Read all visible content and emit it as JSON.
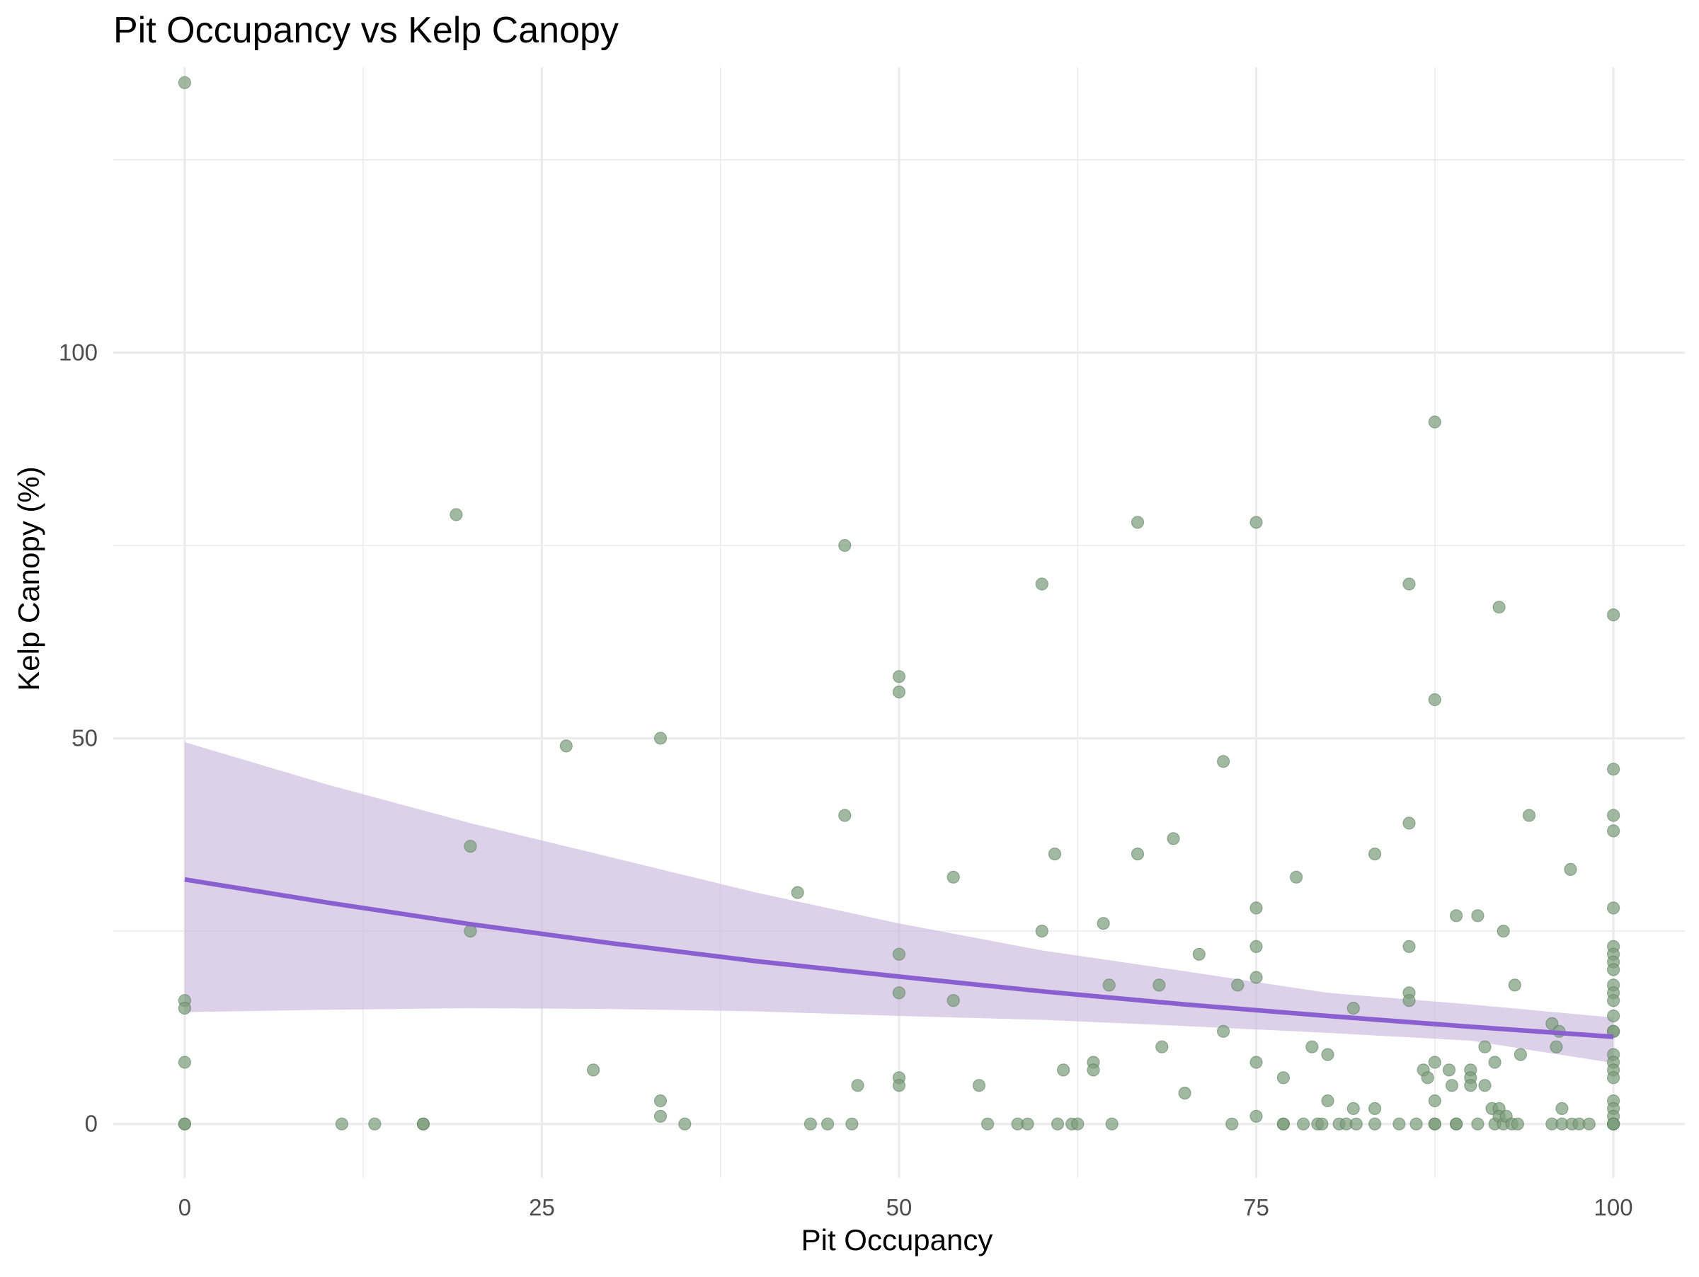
{
  "chart_data": {
    "type": "scatter",
    "title": "Pit Occupancy vs Kelp Canopy",
    "xlabel": "Pit Occupancy",
    "ylabel": "Kelp Canopy (%)",
    "xlim": [
      -5,
      105
    ],
    "ylim": [
      -7,
      137
    ],
    "x_ticks": [
      0,
      25,
      50,
      75,
      100
    ],
    "y_ticks": [
      0,
      50,
      100
    ],
    "grid": true,
    "legend": "none",
    "colors": {
      "points": "#7d9e7b",
      "trend_line": "#8a5fd0",
      "ribbon": "#c9b8db"
    },
    "points": [
      [
        0,
        135
      ],
      [
        0,
        16
      ],
      [
        0,
        15
      ],
      [
        0,
        8
      ],
      [
        0,
        0
      ],
      [
        0,
        0
      ],
      [
        11,
        0
      ],
      [
        13.3,
        0
      ],
      [
        16.7,
        0
      ],
      [
        16.7,
        0
      ],
      [
        19,
        79
      ],
      [
        20,
        36
      ],
      [
        20,
        25
      ],
      [
        26.7,
        49
      ],
      [
        28.6,
        7
      ],
      [
        33.3,
        50
      ],
      [
        33.3,
        3
      ],
      [
        33.3,
        1
      ],
      [
        35,
        0
      ],
      [
        42.9,
        30
      ],
      [
        43.8,
        0
      ],
      [
        45,
        0
      ],
      [
        46.2,
        75
      ],
      [
        46.2,
        40
      ],
      [
        46.7,
        0
      ],
      [
        47.1,
        5
      ],
      [
        50,
        58
      ],
      [
        50,
        56
      ],
      [
        50,
        22
      ],
      [
        50,
        17
      ],
      [
        50,
        6
      ],
      [
        50,
        5
      ],
      [
        53.8,
        32
      ],
      [
        53.8,
        16
      ],
      [
        55.6,
        5
      ],
      [
        56.2,
        0
      ],
      [
        58.3,
        0
      ],
      [
        59,
        0
      ],
      [
        60,
        70
      ],
      [
        60,
        25
      ],
      [
        60.9,
        35
      ],
      [
        61.1,
        0
      ],
      [
        61.5,
        7
      ],
      [
        62.1,
        0
      ],
      [
        62.5,
        0
      ],
      [
        63.6,
        8
      ],
      [
        63.6,
        7
      ],
      [
        64.3,
        26
      ],
      [
        64.7,
        18
      ],
      [
        64.9,
        0
      ],
      [
        66.7,
        78
      ],
      [
        66.7,
        35
      ],
      [
        68.2,
        18
      ],
      [
        68.4,
        10
      ],
      [
        69.2,
        37
      ],
      [
        70,
        4
      ],
      [
        71,
        22
      ],
      [
        72.7,
        47
      ],
      [
        72.7,
        12
      ],
      [
        73.3,
        0
      ],
      [
        73.7,
        18
      ],
      [
        75,
        78
      ],
      [
        75,
        28
      ],
      [
        75,
        23
      ],
      [
        75,
        19
      ],
      [
        75,
        8
      ],
      [
        75,
        1
      ],
      [
        76.9,
        6
      ],
      [
        76.9,
        0
      ],
      [
        76.9,
        0
      ],
      [
        77.8,
        32
      ],
      [
        78.3,
        0
      ],
      [
        78.9,
        10
      ],
      [
        79.3,
        0
      ],
      [
        79.6,
        0
      ],
      [
        80,
        9
      ],
      [
        80,
        3
      ],
      [
        80.8,
        0
      ],
      [
        81.3,
        0
      ],
      [
        81.8,
        2
      ],
      [
        81.8,
        15
      ],
      [
        82,
        0
      ],
      [
        83.3,
        35
      ],
      [
        83.3,
        2
      ],
      [
        83.3,
        0
      ],
      [
        85,
        0
      ],
      [
        85.7,
        70
      ],
      [
        85.7,
        39
      ],
      [
        85.7,
        23
      ],
      [
        85.7,
        17
      ],
      [
        85.7,
        16
      ],
      [
        86.2,
        0
      ],
      [
        86.7,
        7
      ],
      [
        87,
        6
      ],
      [
        87.5,
        91
      ],
      [
        87.5,
        55
      ],
      [
        87.5,
        8
      ],
      [
        87.5,
        3
      ],
      [
        87.5,
        0
      ],
      [
        87.5,
        0
      ],
      [
        88.5,
        7
      ],
      [
        88.7,
        5
      ],
      [
        89,
        27
      ],
      [
        89,
        0
      ],
      [
        89,
        0
      ],
      [
        90,
        7
      ],
      [
        90,
        6
      ],
      [
        90,
        5
      ],
      [
        90.5,
        27
      ],
      [
        90.5,
        0
      ],
      [
        91,
        10
      ],
      [
        91,
        5
      ],
      [
        91.5,
        2
      ],
      [
        91.7,
        8
      ],
      [
        91.7,
        0
      ],
      [
        92,
        67
      ],
      [
        92,
        2
      ],
      [
        92,
        1
      ],
      [
        92.3,
        25
      ],
      [
        92.3,
        0
      ],
      [
        92.5,
        1
      ],
      [
        92.9,
        0
      ],
      [
        93.3,
        0
      ],
      [
        93.1,
        18
      ],
      [
        93.5,
        9
      ],
      [
        94.1,
        40
      ],
      [
        95.7,
        13
      ],
      [
        95.7,
        0
      ],
      [
        96,
        10
      ],
      [
        96.2,
        12
      ],
      [
        96.4,
        2
      ],
      [
        96.4,
        0
      ],
      [
        97,
        33
      ],
      [
        97.1,
        0
      ],
      [
        97.6,
        0
      ],
      [
        98.3,
        0
      ],
      [
        100,
        66
      ],
      [
        100,
        46
      ],
      [
        100,
        40
      ],
      [
        100,
        38
      ],
      [
        100,
        28
      ],
      [
        100,
        23
      ],
      [
        100,
        22
      ],
      [
        100,
        21
      ],
      [
        100,
        20
      ],
      [
        100,
        18
      ],
      [
        100,
        17
      ],
      [
        100,
        16
      ],
      [
        100,
        14
      ],
      [
        100,
        12
      ],
      [
        100,
        12
      ],
      [
        100,
        9
      ],
      [
        100,
        8
      ],
      [
        100,
        7
      ],
      [
        100,
        6
      ],
      [
        100,
        3
      ],
      [
        100,
        2
      ],
      [
        100,
        1
      ],
      [
        100,
        0
      ],
      [
        100,
        0
      ],
      [
        100,
        0
      ]
    ],
    "trend": {
      "x": [
        0,
        10,
        20,
        30,
        40,
        50,
        60,
        70,
        80,
        90,
        100
      ],
      "y": [
        31.7,
        28.7,
        25.9,
        23.4,
        21.1,
        19.1,
        17.2,
        15.5,
        14.0,
        12.6,
        11.3
      ],
      "ymin": [
        14.5,
        14.8,
        15.0,
        14.9,
        14.6,
        14.0,
        13.5,
        12.7,
        11.8,
        10.8,
        7.9
      ],
      "ymax": [
        49.5,
        44.0,
        39.0,
        34.5,
        30.0,
        26.0,
        22.5,
        19.8,
        17.0,
        15.5,
        13.8
      ]
    }
  }
}
